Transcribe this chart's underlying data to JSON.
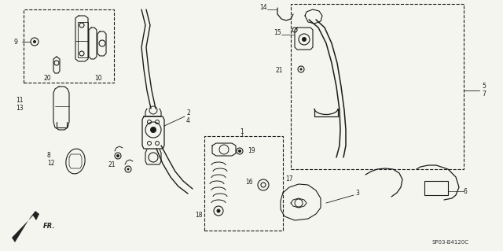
{
  "bg_color": "#f5f5f0",
  "line_color": "#1a1a1a",
  "part_code": "SP03-B4120C",
  "figsize": [
    6.4,
    3.19
  ],
  "dpi": 100
}
